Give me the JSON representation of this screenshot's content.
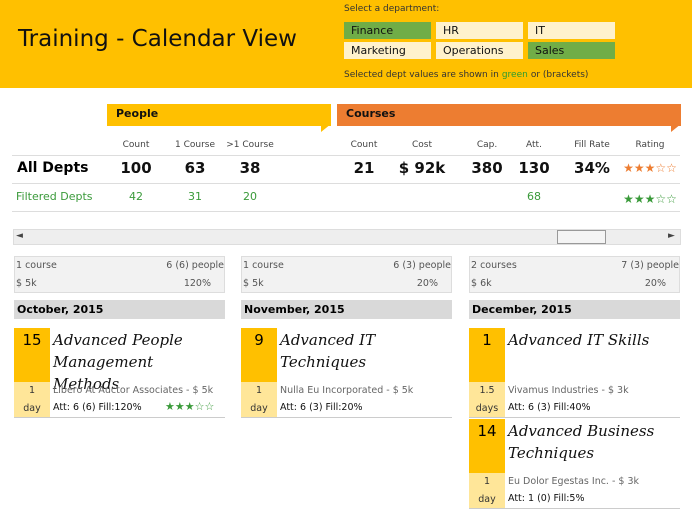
{
  "header": {
    "title": "Training - Calendar View",
    "select_label": "Select a department:",
    "departments": [
      {
        "name": "Finance",
        "selected": true
      },
      {
        "name": "HR",
        "selected": false
      },
      {
        "name": "IT",
        "selected": false
      },
      {
        "name": "Marketing",
        "selected": false
      },
      {
        "name": "Operations",
        "selected": false
      },
      {
        "name": "Sales",
        "selected": true
      }
    ],
    "note": {
      "before": "Selected dept values are shown in",
      "highlight": "green",
      "after": "or (brackets)"
    }
  },
  "summary": {
    "people": {
      "title": "People",
      "columns": [
        "Count",
        "1 Course",
        ">1 Course"
      ],
      "all": [
        100,
        63,
        38
      ],
      "filtered": [
        42,
        31,
        20
      ]
    },
    "courses": {
      "title": "Courses",
      "columns": [
        "Count",
        "Cost",
        "Cap.",
        "Att.",
        "Fill Rate",
        "Rating"
      ],
      "all": [
        21,
        "$ 92k",
        380,
        130,
        "34%",
        "★★★☆☆"
      ],
      "filtered": [
        null,
        null,
        null,
        68,
        null,
        "★★★☆☆"
      ]
    },
    "rows": [
      "All Depts",
      "Filtered Depts"
    ]
  },
  "calendar": [
    {
      "courses": "1 course",
      "people": "6 (6) people",
      "cost": "$ 5k",
      "fill": "120%",
      "month": "October, 2015",
      "events": [
        {
          "day": 15,
          "title": "Advanced People Management Methods",
          "duration": "1",
          "unit": "day",
          "org": "Libero At Auctor Associates - $ 5k",
          "stats": "Att: 6 (6) Fill:120%",
          "rating": "★★★☆☆"
        }
      ]
    },
    {
      "courses": "1 course",
      "people": "6 (3) people",
      "cost": "$ 5k",
      "fill": "20%",
      "month": "November, 2015",
      "events": [
        {
          "day": 9,
          "title": "Advanced IT Techniques",
          "duration": "1",
          "unit": "day",
          "org": "Nulla Eu Incorporated - $ 5k",
          "stats": "Att: 6 (3) Fill:20%"
        }
      ]
    },
    {
      "courses": "2 courses",
      "people": "7 (3) people",
      "cost": "$ 6k",
      "fill": "20%",
      "month": "December, 2015",
      "events": [
        {
          "day": 1,
          "title": "Advanced IT Skills",
          "duration": "1.5",
          "unit": "days",
          "org": "Vivamus Industries - $ 3k",
          "stats": "Att: 6 (3) Fill:40%"
        },
        {
          "day": 14,
          "title": "Advanced Business Techniques",
          "duration": "1",
          "unit": "day",
          "org": "Eu Dolor Egestas Inc. - $ 3k",
          "stats": "Att: 1 (0) Fill:5%"
        }
      ]
    }
  ]
}
